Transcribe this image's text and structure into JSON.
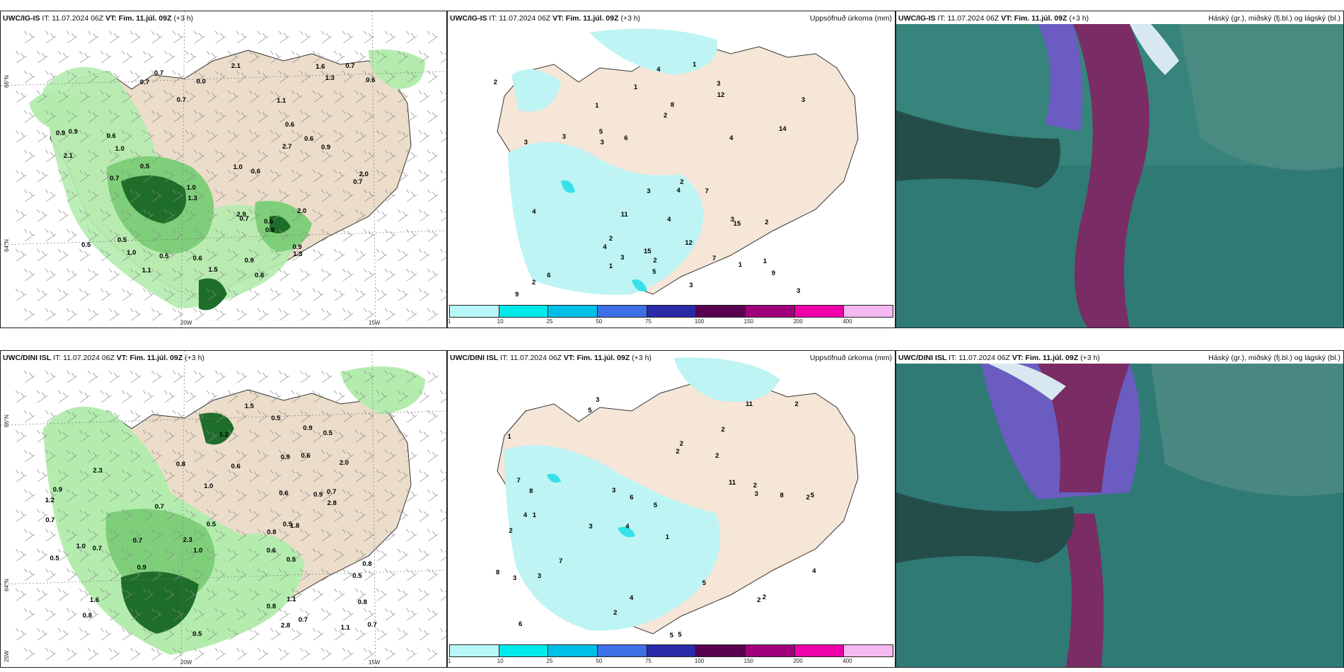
{
  "rows": [
    {
      "model": "UWC/IG-IS",
      "it_text": "IT: 11.07.2024 06Z",
      "vt_label": "VT: Fim. 11.júl. 09Z",
      "lead": "(+3 h)"
    },
    {
      "model": "UWC/DINI ISL",
      "it_text": "IT: 11.07.2024 06Z",
      "vt_label": "VT: Fim. 11.júl. 09Z",
      "lead": "(+3 h)"
    }
  ],
  "precip_title": "Uppsöfnuð úrkoma (mm)",
  "cloud_title": "Háský (gr.), miðský (fj.bl.) og lágský (bl.)",
  "axis_labels": {
    "lat_66": "66°N",
    "lat_64": "64°N",
    "lon_20": "20W",
    "lon_15": "15W",
    "lon_25": "25W"
  },
  "colorbar": {
    "colors": [
      "#b7f7f7",
      "#00eaea",
      "#00bfe6",
      "#3d6fe6",
      "#2a2aa8",
      "#5a0050",
      "#a0007a",
      "#ee00aa",
      "#f6b8f0"
    ],
    "ticks": [
      "1",
      "10",
      "25",
      "50",
      "75",
      "100",
      "150",
      "200",
      "400"
    ]
  },
  "top_wind_values": [
    "0.8",
    "0.7",
    "0.5",
    "0.6",
    "0.6",
    "0.9",
    "0.7",
    "0.5",
    "1.3",
    "1.0",
    "0.5",
    "0.9",
    "1.0",
    "2.9",
    "2.7",
    "1.6",
    "2.1",
    "1.3",
    "2.0",
    "0.9",
    "0.9",
    "0.7",
    "1.1",
    "1.3",
    "0.6",
    "0.6",
    "0.7",
    "1.0",
    "1.5",
    "0.7",
    "0.9",
    "0.7",
    "1.1",
    "0.5",
    "0.7",
    "0.6",
    "2.1",
    "0.9",
    "2.0",
    "0.6",
    "0.0",
    "1.0",
    "0.6"
  ],
  "top_precip_values": [
    "2",
    "2",
    "2",
    "4",
    "1",
    "1",
    "1",
    "3",
    "1",
    "4",
    "3",
    "3",
    "3",
    "4",
    "7",
    "5",
    "3",
    "4",
    "3",
    "3",
    "2",
    "6",
    "5",
    "7",
    "15",
    "12",
    "6",
    "2",
    "14",
    "12",
    "9",
    "11",
    "8",
    "9",
    "4",
    "3",
    "2",
    "4",
    "3",
    "15",
    "3",
    "2",
    "1",
    "1"
  ],
  "bottom_wind_values": [
    "0.6",
    "0.8",
    "0.9",
    "0.5",
    "0.8",
    "0.6",
    "0.7",
    "1.0",
    "0.8",
    "0.7",
    "0.5",
    "0.8",
    "0.5",
    "0.5",
    "0.9",
    "1.1",
    "0.5",
    "1.0",
    "0.9",
    "0.8",
    "1.0",
    "0.7",
    "0.6",
    "0.5",
    "2.8",
    "1.6",
    "2.3",
    "0.9",
    "0.7",
    "0.7",
    "2.0",
    "1.5",
    "0.9",
    "1.1",
    "0.7",
    "0.8",
    "0.6",
    "0.5",
    "1.8",
    "2.8",
    "2.3",
    "0.7",
    "1.2",
    "0.5",
    "1.2"
  ],
  "bottom_precip_values": [
    "3",
    "2",
    "2",
    "4",
    "1",
    "1",
    "1",
    "2",
    "2",
    "2",
    "5",
    "6",
    "5",
    "3",
    "5",
    "5",
    "4",
    "11",
    "11",
    "7",
    "8",
    "4",
    "5",
    "8",
    "8",
    "7",
    "6",
    "3",
    "2",
    "3",
    "2",
    "2",
    "3",
    "3",
    "5",
    "4",
    "2",
    "2",
    "2"
  ]
}
